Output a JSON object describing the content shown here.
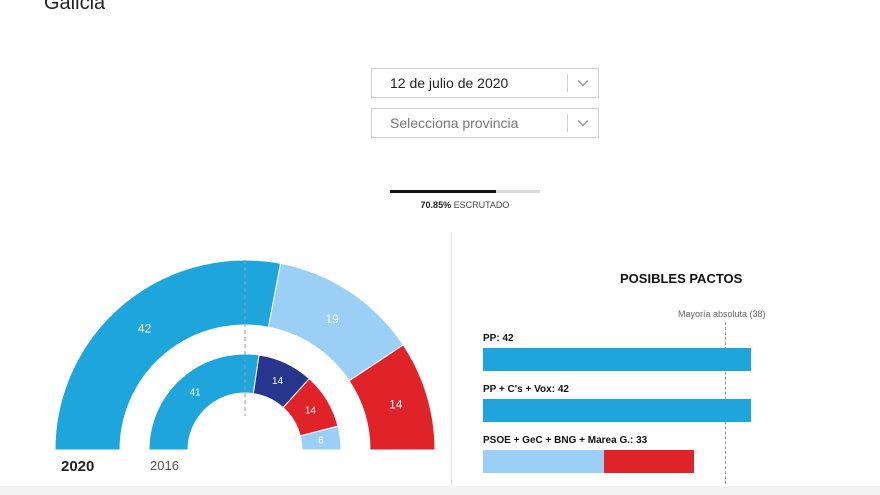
{
  "header": {
    "title": "Galicia"
  },
  "filters": {
    "date": {
      "value": "12 de julio de 2020"
    },
    "province": {
      "placeholder": "Selecciona provincia"
    }
  },
  "progress": {
    "percent": 70.85,
    "percent_text": "70.85%",
    "label": "ESCRUTADO"
  },
  "hemicycle": {
    "total_seats": 75,
    "majority_seats": 38,
    "years": {
      "current": "2020",
      "previous": "2016"
    },
    "current": [
      {
        "seats": 42,
        "seats_label": "42",
        "color": "#1ea5dc"
      },
      {
        "seats": 19,
        "seats_label": "19",
        "color": "#9ccff5"
      },
      {
        "seats": 14,
        "seats_label": "14",
        "color": "#e02229"
      }
    ],
    "previous": [
      {
        "seats": 41,
        "seats_label": "41",
        "color": "#1ea5dc"
      },
      {
        "seats": 14,
        "seats_label": "14",
        "color": "#27368c"
      },
      {
        "seats": 14,
        "seats_label": "14",
        "color": "#e02229"
      },
      {
        "seats": 6,
        "seats_label": "6",
        "color": "#9ccff5"
      }
    ]
  },
  "pactos": {
    "title": "POSIBLES PACTOS",
    "majority_label": "Mayoría absoluta (38)",
    "majority_seats": 38,
    "scale_max_seats": 42,
    "items": [
      {
        "label": "PP: 42",
        "segments": [
          {
            "seats": 42,
            "color": "#1ea5dc"
          }
        ]
      },
      {
        "label": "PP + C's + Vox: 42",
        "segments": [
          {
            "seats": 42,
            "color": "#1ea5dc"
          }
        ]
      },
      {
        "label": "PSOE + GeC + BNG + Marea G.: 33",
        "segments": [
          {
            "seats": 19,
            "color": "#9ccff5"
          },
          {
            "seats": 14,
            "color": "#e02229"
          }
        ]
      }
    ]
  }
}
